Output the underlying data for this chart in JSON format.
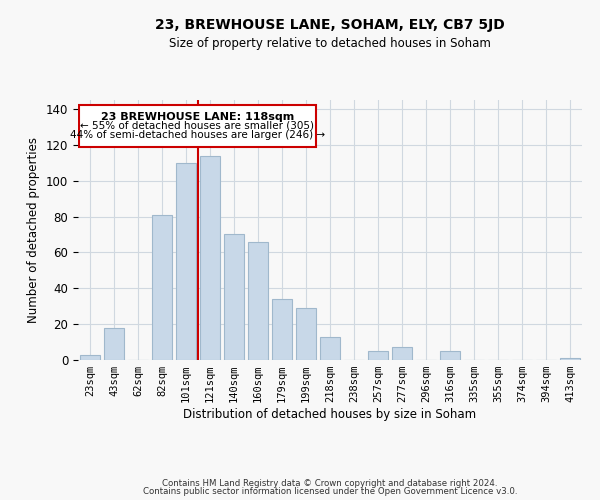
{
  "title": "23, BREWHOUSE LANE, SOHAM, ELY, CB7 5JD",
  "subtitle": "Size of property relative to detached houses in Soham",
  "xlabel": "Distribution of detached houses by size in Soham",
  "ylabel": "Number of detached properties",
  "bar_labels": [
    "23sqm",
    "43sqm",
    "62sqm",
    "82sqm",
    "101sqm",
    "121sqm",
    "140sqm",
    "160sqm",
    "179sqm",
    "199sqm",
    "218sqm",
    "238sqm",
    "257sqm",
    "277sqm",
    "296sqm",
    "316sqm",
    "335sqm",
    "355sqm",
    "374sqm",
    "394sqm",
    "413sqm"
  ],
  "bar_values": [
    3,
    18,
    0,
    81,
    110,
    114,
    70,
    66,
    34,
    29,
    13,
    0,
    5,
    7,
    0,
    5,
    0,
    0,
    0,
    0,
    1
  ],
  "bar_color": "#c8d8e8",
  "bar_edge_color": "#a0b8cc",
  "marker_index": 5,
  "marker_label": "23 BREWHOUSE LANE: 118sqm",
  "annotation_line1": "← 55% of detached houses are smaller (305)",
  "annotation_line2": "44% of semi-detached houses are larger (246) →",
  "marker_color": "#cc0000",
  "ylim": [
    0,
    145
  ],
  "yticks": [
    0,
    20,
    40,
    60,
    80,
    100,
    120,
    140
  ],
  "footer1": "Contains HM Land Registry data © Crown copyright and database right 2024.",
  "footer2": "Contains public sector information licensed under the Open Government Licence v3.0.",
  "background_color": "#f8f8f8",
  "grid_color": "#d0d8e0"
}
